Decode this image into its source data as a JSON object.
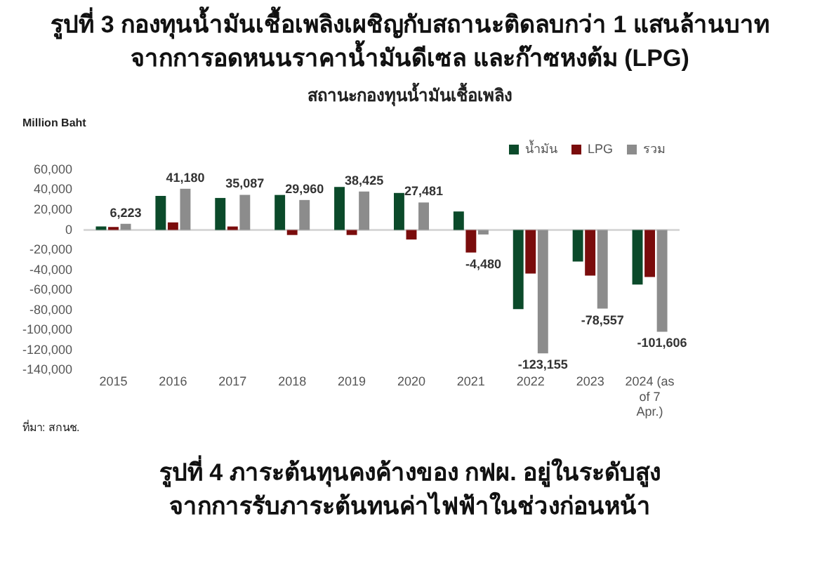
{
  "chart_data": {
    "type": "bar",
    "title": "รูปที่ 3 กองทุนน้ำมันเชื้อเพลิงเผชิญกับสถานะติดลบกว่า 1 แสนล้านบาท\nจากการอดหนนราคาน้ำมันดีเซล และก๊าซหงต้ม (LPG)",
    "subtitle": "สถานะกองทุนน้ำมันเชื้อเพลิง",
    "ylabel": "Million Baht",
    "categories": [
      "2015",
      "2016",
      "2017",
      "2018",
      "2019",
      "2020",
      "2021",
      "2022",
      "2023",
      "2024 (as of 7 Apr.)"
    ],
    "series": [
      {
        "name": "น้ำมัน",
        "color": "#0b4a2a",
        "values": [
          3500,
          34000,
          32000,
          35000,
          43000,
          37000,
          18500,
          -79000,
          -31500,
          -54500
        ]
      },
      {
        "name": "LPG",
        "color": "#7a0c0c",
        "values": [
          3000,
          7500,
          3500,
          -5000,
          -5000,
          -9500,
          -22500,
          -43500,
          -45500,
          -47000
        ]
      },
      {
        "name": "รวม",
        "color": "#8c8c8c",
        "values": [
          6223,
          41180,
          35087,
          29960,
          38425,
          27481,
          -4480,
          -123155,
          -78557,
          -101606
        ],
        "value_labels": [
          "6,223",
          "41,180",
          "35,087",
          "29,960",
          "38,425",
          "27,481",
          "-4,480",
          "-123,155",
          "-78,557",
          "-101,606"
        ]
      }
    ],
    "ylim": [
      -140000,
      60000
    ],
    "yticks": [
      {
        "value": -140000,
        "label": "-140,000"
      },
      {
        "value": -120000,
        "label": "-120,000"
      },
      {
        "value": -100000,
        "label": "-100,000"
      },
      {
        "value": -80000,
        "label": "-80,000"
      },
      {
        "value": -60000,
        "label": "-60,000"
      },
      {
        "value": -40000,
        "label": "-40,000"
      },
      {
        "value": -20000,
        "label": "-20,000"
      },
      0,
      {
        "value": 20000,
        "label": "20,000"
      },
      {
        "value": 40000,
        "label": "40,000"
      },
      {
        "value": 60000,
        "label": "60,000"
      }
    ],
    "grid": false,
    "legend": "top right",
    "ref_lines": [
      {
        "axis": "y",
        "value": 0,
        "color": "#d8d8d8"
      }
    ],
    "annotations": [
      "ที่มา: สกนช.",
      "รูปที่ 4 ภาระต้นทุนคงค้างของ กฟผ. อยู่ในระดับสูง\nจากการรับภาระต้นทนค่าไฟฟ้าในช่วงก่อนหน้า"
    ]
  }
}
